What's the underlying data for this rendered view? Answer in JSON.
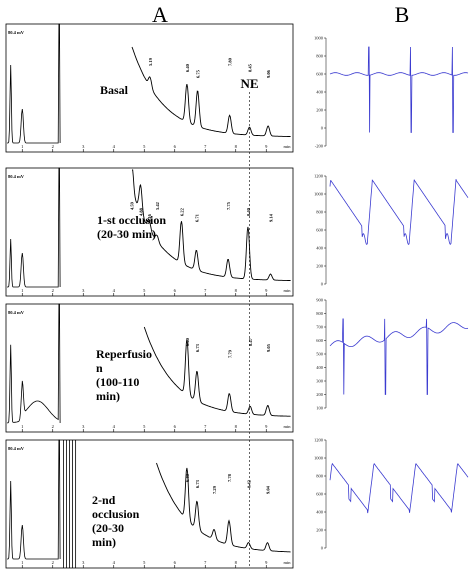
{
  "figure": {
    "panel_a_label": "A",
    "panel_b_label": "B",
    "ne_label": "NE",
    "accent": {
      "chrom_line": "#000000",
      "pressure_line": "#3b3bd0",
      "frame": "#000000"
    }
  },
  "chart_data": [
    {
      "type": "line",
      "panel": "A",
      "condition": "Basal",
      "ylabel": "80.4 mV",
      "xlabel": "min",
      "x_ticks": [
        "1",
        "2",
        "3",
        "4",
        "5",
        "6",
        "7",
        "8",
        "9"
      ],
      "peak_labels": [
        {
          "time": 5.19,
          "text": "5.19"
        },
        {
          "time": 6.4,
          "text": "6.40"
        },
        {
          "time": 6.75,
          "text": "6.75"
        },
        {
          "time": 7.8,
          "text": "7.80"
        },
        {
          "time": 8.45,
          "text": "8.45"
        },
        {
          "time": 9.06,
          "text": "9.06"
        }
      ]
    },
    {
      "type": "line",
      "panel": "A",
      "condition_lines": [
        "1-st occlusion",
        "(20-30 min)"
      ],
      "ylabel": "80.4 mV",
      "xlabel": "min",
      "x_ticks": [
        "1",
        "2",
        "3",
        "4",
        "5",
        "6",
        "7",
        "8",
        "9"
      ],
      "peak_labels": [
        {
          "time": 4.59,
          "text": "4.59"
        },
        {
          "time": 4.88,
          "text": "4.88"
        },
        {
          "time": 5.16,
          "text": "5.16"
        },
        {
          "time": 5.42,
          "text": "5.42"
        },
        {
          "time": 6.22,
          "text": "6.22"
        },
        {
          "time": 6.71,
          "text": "6.71"
        },
        {
          "time": 7.75,
          "text": "7.75"
        },
        {
          "time": 8.4,
          "text": "8.40"
        },
        {
          "time": 9.14,
          "text": "9.14"
        }
      ]
    },
    {
      "type": "line",
      "panel": "A",
      "condition_lines": [
        "Reperfusio",
        "n",
        "(100-110",
        "min)"
      ],
      "ylabel": "80.4 mV",
      "xlabel": "min",
      "x_ticks": [
        "1",
        "2",
        "3",
        "4",
        "5",
        "6",
        "7",
        "8",
        "9"
      ],
      "peak_labels": [
        {
          "time": 6.4,
          "text": "6.40"
        },
        {
          "time": 6.73,
          "text": "6.73"
        },
        {
          "time": 7.79,
          "text": "7.79"
        },
        {
          "time": 8.47,
          "text": "8.47"
        },
        {
          "time": 9.05,
          "text": "9.05"
        }
      ]
    },
    {
      "type": "line",
      "panel": "A",
      "condition_lines": [
        "2-nd",
        "occlusion",
        "(20-30",
        "min)"
      ],
      "ylabel": "80.4 mV",
      "xlabel": "min",
      "x_ticks": [
        "1",
        "2",
        "3",
        "4",
        "5",
        "6",
        "7",
        "8",
        "9"
      ],
      "peak_labels": [
        {
          "time": 6.4,
          "text": "6.40"
        },
        {
          "time": 6.73,
          "text": "6.73"
        },
        {
          "time": 7.29,
          "text": "7.29"
        },
        {
          "time": 7.78,
          "text": "7.78"
        },
        {
          "time": 8.42,
          "text": "8.42"
        },
        {
          "time": 9.04,
          "text": "9.04"
        }
      ]
    },
    {
      "type": "line",
      "panel": "B",
      "y_ticks": [
        "-200",
        "0",
        "200",
        "400",
        "600",
        "800",
        "1000"
      ],
      "pattern": "flat",
      "ylim": [
        -200,
        1000
      ]
    },
    {
      "type": "line",
      "panel": "B",
      "y_ticks": [
        "0",
        "200",
        "400",
        "600",
        "800",
        "1000",
        "1200"
      ],
      "pattern": "sawtooth",
      "ylim": [
        0,
        1200
      ]
    },
    {
      "type": "line",
      "panel": "B",
      "y_ticks": [
        "100",
        "200",
        "300",
        "400",
        "500",
        "600",
        "700",
        "800",
        "900"
      ],
      "pattern": "ramp",
      "ylim": [
        100,
        900
      ]
    },
    {
      "type": "line",
      "panel": "B",
      "y_ticks": [
        "0",
        "200",
        "400",
        "600",
        "800",
        "1000",
        "1200"
      ],
      "pattern": "wave",
      "ylim": [
        0,
        1200
      ]
    }
  ]
}
